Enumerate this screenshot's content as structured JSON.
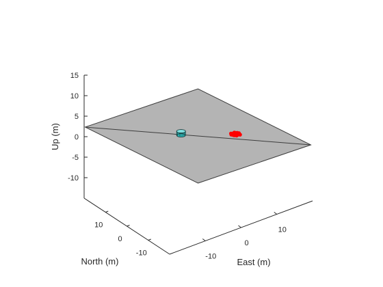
{
  "chart_data": {
    "type": "scatter",
    "title": "",
    "xlabel": "East (m)",
    "ylabel": "North (m)",
    "zlabel": "Up (m)",
    "xlim": [
      -20,
      20
    ],
    "ylim": [
      -20,
      20
    ],
    "zlim": [
      -15,
      15
    ],
    "xticks": [
      "-10",
      "0",
      "10"
    ],
    "yticks": [
      "-10",
      "0",
      "10"
    ],
    "zticks": [
      "-10",
      "-5",
      "0",
      "5",
      "10",
      "15"
    ],
    "grid": false,
    "ground_plane": {
      "color": "#b4b4b4",
      "edge_color": "#3c3c3c",
      "diagonal": true
    },
    "vehicle": {
      "color": "#2bb6b6",
      "position": [
        -3,
        3,
        0
      ]
    },
    "point_cloud": {
      "color": "#ff0000",
      "points": [
        [
          8.2,
          -4.5,
          0
        ],
        [
          8.6,
          -4.8,
          0
        ],
        [
          9.0,
          -4.4,
          0
        ],
        [
          8.4,
          -4.1,
          0
        ],
        [
          7.8,
          -4.6,
          0
        ],
        [
          9.3,
          -4.9,
          0
        ],
        [
          8.9,
          -5.2,
          0
        ],
        [
          8.1,
          -5.0,
          0
        ],
        [
          9.6,
          -4.3,
          0
        ],
        [
          8.7,
          -3.9,
          0
        ],
        [
          7.6,
          -4.2,
          0
        ],
        [
          9.1,
          -3.8,
          0
        ],
        [
          8.3,
          -5.4,
          0
        ],
        [
          9.4,
          -5.5,
          0
        ],
        [
          8.0,
          -3.7,
          0
        ],
        [
          9.8,
          -4.7,
          0
        ],
        [
          8.5,
          -4.4,
          0
        ],
        [
          8.8,
          -4.6,
          0
        ],
        [
          9.2,
          -4.1,
          0
        ],
        [
          7.9,
          -4.9,
          0
        ]
      ]
    }
  }
}
